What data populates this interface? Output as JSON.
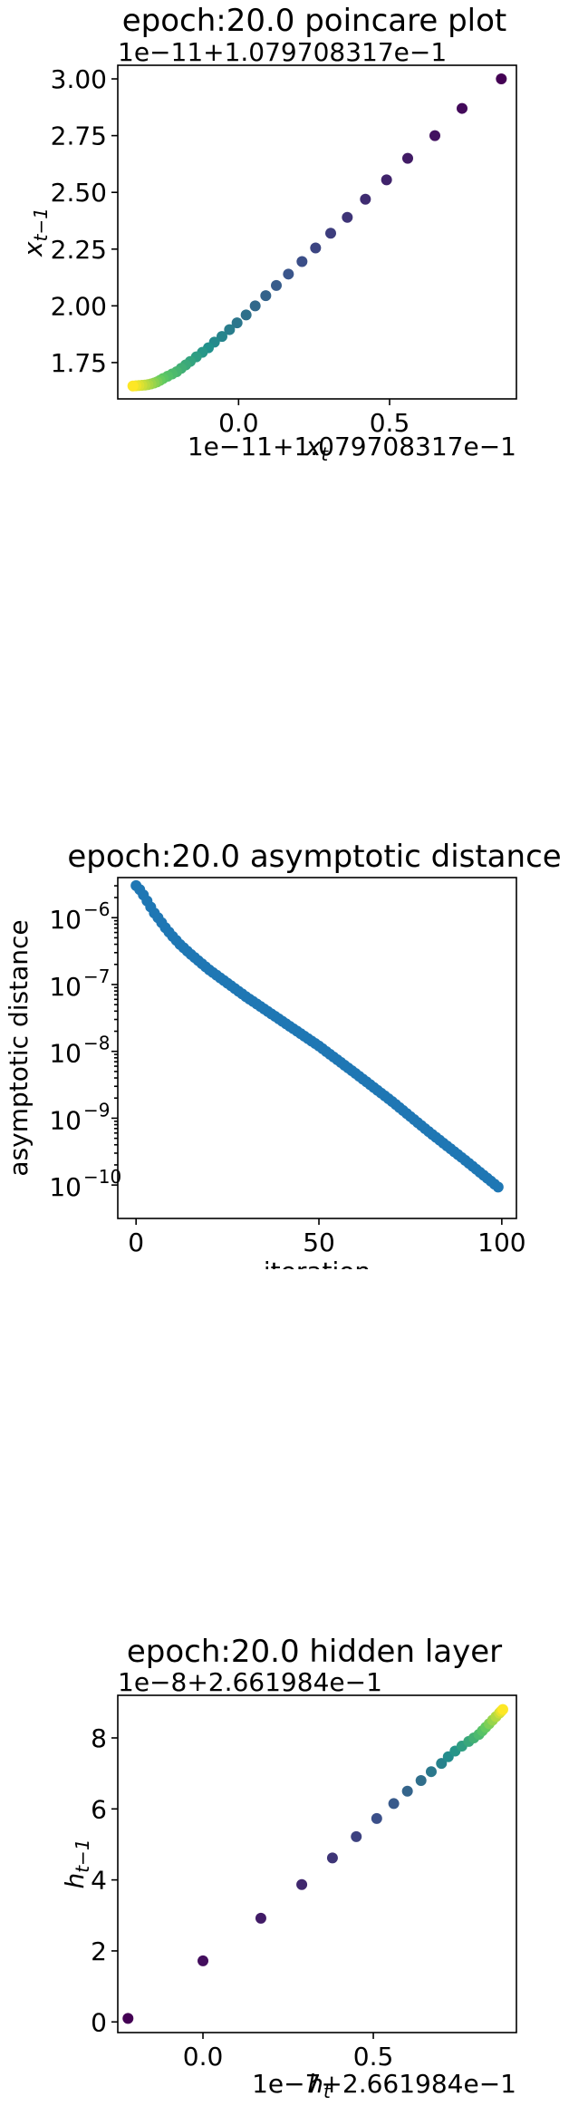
{
  "chart_data": [
    {
      "type": "scatter",
      "title": "epoch:20.0 poincare plot",
      "xlabel_main": "x",
      "xlabel_sub": "t",
      "ylabel_main": "x",
      "ylabel_sub": "t−1",
      "x_offset_text": "1e−11+1.079708317e−1",
      "y_offset_text": "1e−11+1.079708317e−1",
      "xlim": [
        -0.4,
        0.92
      ],
      "ylim": [
        1.59,
        3.06
      ],
      "xticks": [
        0.0,
        0.5
      ],
      "xtick_labels": [
        "0.0",
        "0.5"
      ],
      "yticks": [
        1.75,
        2.0,
        2.25,
        2.5,
        2.75,
        3.0
      ],
      "ytick_labels": [
        "1.75",
        "2.00",
        "2.25",
        "2.50",
        "2.75",
        "3.00"
      ],
      "colormap": [
        "#440154",
        "#3b528b",
        "#21918c",
        "#5ec962",
        "#fde725"
      ],
      "points": {
        "x": [
          0.87,
          0.74,
          0.65,
          0.56,
          0.49,
          0.42,
          0.36,
          0.305,
          0.255,
          0.21,
          0.165,
          0.125,
          0.09,
          0.055,
          0.025,
          -0.005,
          -0.03,
          -0.055,
          -0.08,
          -0.1,
          -0.12,
          -0.14,
          -0.16,
          -0.175,
          -0.19,
          -0.205,
          -0.22,
          -0.235,
          -0.25,
          -0.26,
          -0.27,
          -0.28,
          -0.29,
          -0.3,
          -0.31,
          -0.32,
          -0.33,
          -0.34,
          -0.35
        ],
        "y": [
          3.0,
          2.87,
          2.75,
          2.65,
          2.555,
          2.47,
          2.39,
          2.32,
          2.255,
          2.195,
          2.14,
          2.09,
          2.045,
          2.0,
          1.96,
          1.925,
          1.895,
          1.865,
          1.84,
          1.815,
          1.795,
          1.775,
          1.755,
          1.74,
          1.725,
          1.71,
          1.7,
          1.69,
          1.68,
          1.672,
          1.665,
          1.66,
          1.656,
          1.653,
          1.651,
          1.65,
          1.649,
          1.648,
          1.647
        ]
      }
    },
    {
      "type": "scatter",
      "title": "epoch:20.0 asymptotic distance",
      "xlabel": "iteration",
      "ylabel": "asymptotic distance",
      "yscale": "log",
      "xlim": [
        -5,
        104
      ],
      "ylim_log10": [
        -10.5,
        -5.4
      ],
      "xticks": [
        0,
        50,
        100
      ],
      "xtick_labels": [
        "0",
        "50",
        "100"
      ],
      "yticks_log10": [
        -10,
        -9,
        -8,
        -7,
        -6
      ],
      "ytick_base": "10",
      "ytick_exponents": [
        "−10",
        "−9",
        "−8",
        "−7",
        "−6"
      ],
      "color": "#1f77b4",
      "x": [
        0,
        1,
        2,
        3,
        4,
        5,
        6,
        8,
        10,
        12,
        15,
        20,
        25,
        30,
        40,
        50,
        60,
        70,
        80,
        90,
        99
      ],
      "y_log10": [
        -5.52,
        -5.58,
        -5.66,
        -5.75,
        -5.84,
        -5.93,
        -6.0,
        -6.15,
        -6.28,
        -6.4,
        -6.55,
        -6.78,
        -6.98,
        -7.18,
        -7.55,
        -7.92,
        -8.33,
        -8.75,
        -9.2,
        -9.63,
        -10.03
      ]
    },
    {
      "type": "scatter",
      "title": "epoch:20.0 hidden layer",
      "xlabel_main": "h",
      "xlabel_sub": "t",
      "ylabel_main": "h",
      "ylabel_sub": "t−1",
      "x_offset_text": "1e−7+2.661984e−1",
      "y_offset_text": "1e−8+2.661984e−1",
      "xlim": [
        -0.25,
        0.92
      ],
      "ylim": [
        -0.3,
        9.2
      ],
      "xticks": [
        0.0,
        0.5
      ],
      "xtick_labels": [
        "0.0",
        "0.5"
      ],
      "yticks": [
        0,
        2,
        4,
        6,
        8
      ],
      "ytick_labels": [
        "0",
        "2",
        "4",
        "6",
        "8"
      ],
      "colormap": [
        "#440154",
        "#3b528b",
        "#21918c",
        "#5ec962",
        "#fde725"
      ],
      "points": {
        "x": [
          -0.22,
          0.0,
          0.17,
          0.29,
          0.38,
          0.45,
          0.51,
          0.56,
          0.6,
          0.64,
          0.67,
          0.7,
          0.72,
          0.74,
          0.76,
          0.78,
          0.795,
          0.81,
          0.82,
          0.83,
          0.84,
          0.85,
          0.86,
          0.87,
          0.875,
          0.88
        ],
        "y": [
          0.1,
          1.72,
          2.92,
          3.87,
          4.62,
          5.22,
          5.73,
          6.15,
          6.5,
          6.8,
          7.05,
          7.28,
          7.47,
          7.63,
          7.77,
          7.9,
          8.0,
          8.1,
          8.2,
          8.3,
          8.4,
          8.5,
          8.6,
          8.7,
          8.75,
          8.8
        ]
      }
    }
  ]
}
